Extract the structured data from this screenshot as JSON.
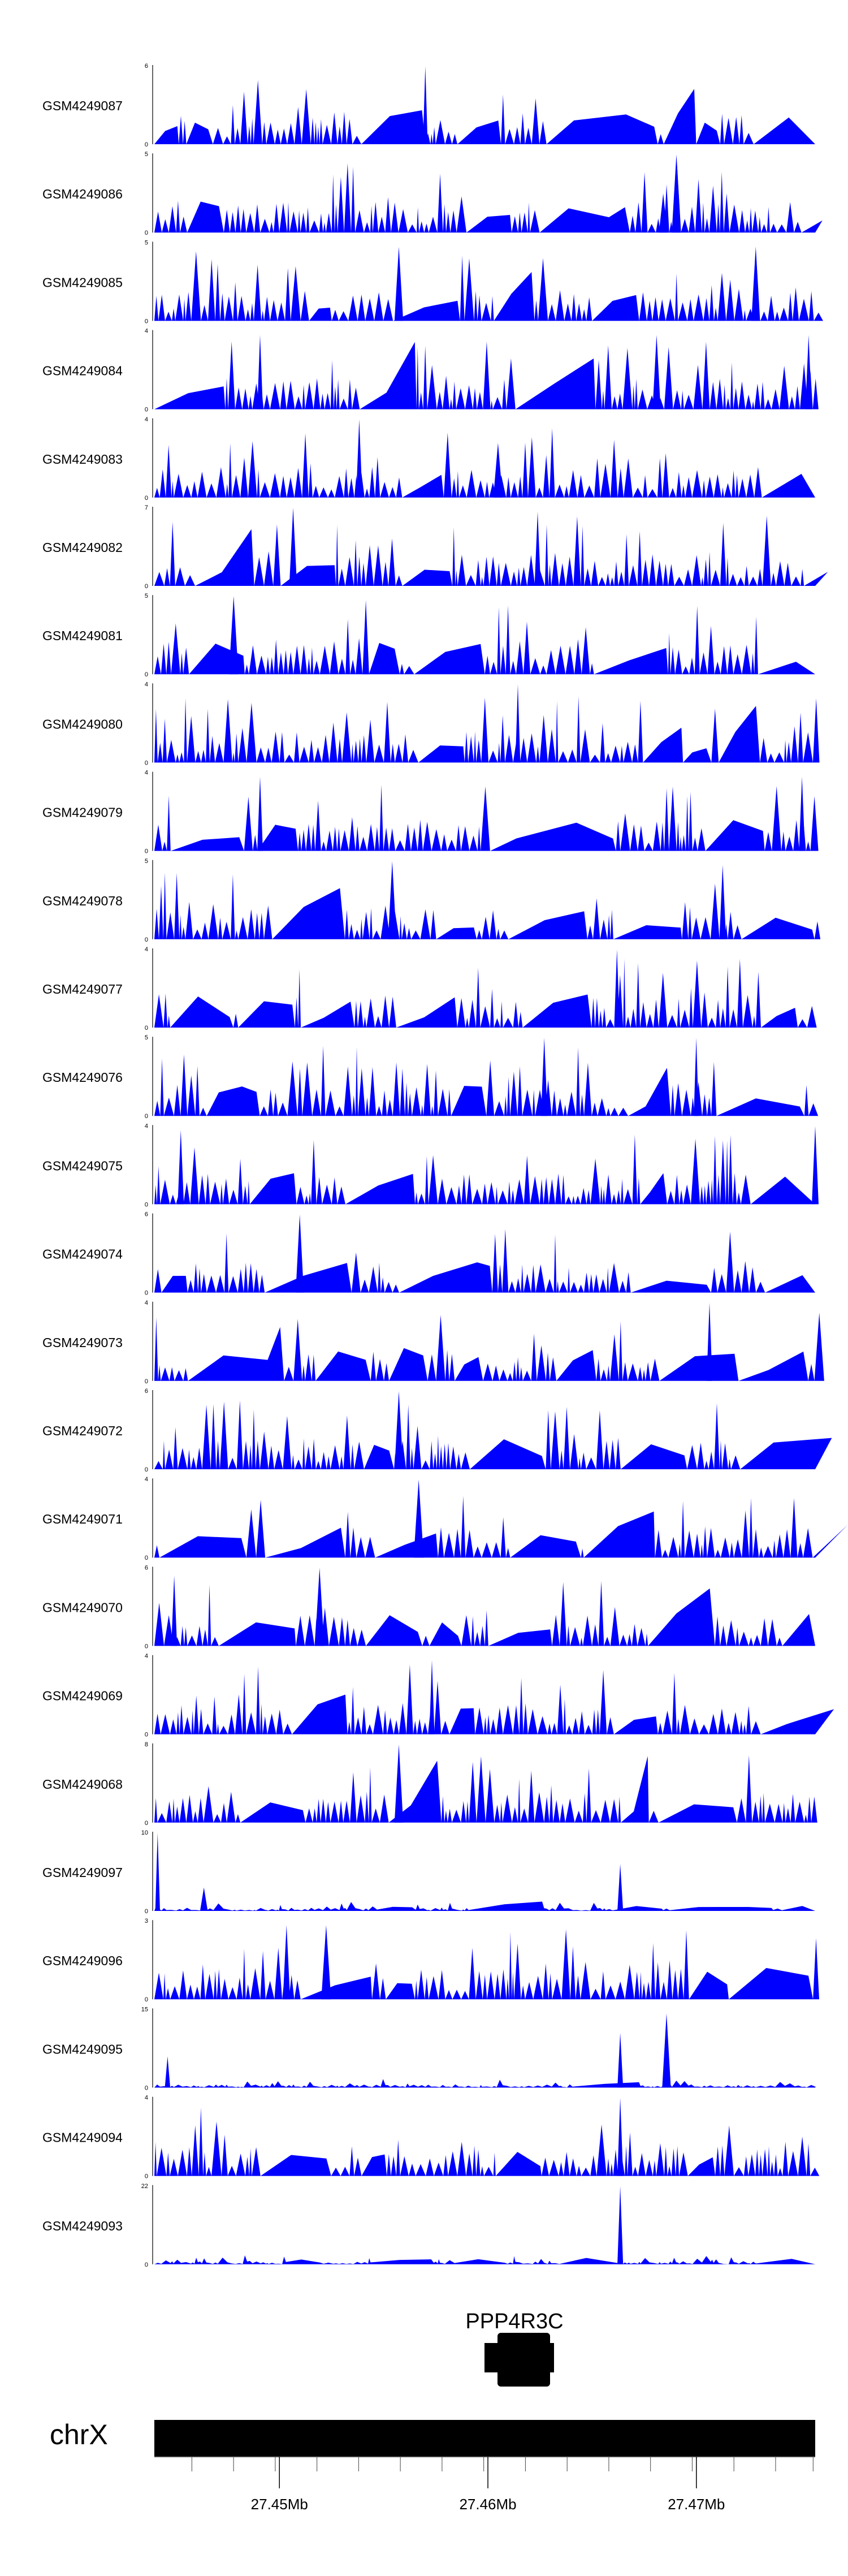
{
  "chart_data": {
    "type": "area",
    "fill_color": "#0000ff",
    "tracks": [
      {
        "name": "GSM4249087",
        "ymax": 6,
        "peaks": [
          {
            "x": 0.41,
            "v": 1.0
          }
        ],
        "seed": 87
      },
      {
        "name": "GSM4249086",
        "ymax": 5,
        "peaks": [
          {
            "x": 0.79,
            "v": 1.0
          },
          {
            "x": 0.77,
            "v": 0.5
          }
        ],
        "seed": 86
      },
      {
        "name": "GSM4249085",
        "ymax": 5,
        "peaks": [
          {
            "x": 0.37,
            "v": 0.95
          },
          {
            "x": 0.91,
            "v": 0.95
          }
        ],
        "seed": 85
      },
      {
        "name": "GSM4249084",
        "ymax": 4,
        "peaks": [
          {
            "x": 0.16,
            "v": 0.95
          },
          {
            "x": 0.76,
            "v": 0.95
          },
          {
            "x": 0.99,
            "v": 0.95
          }
        ],
        "seed": 84
      },
      {
        "name": "GSM4249083",
        "ymax": 4,
        "peaks": [
          {
            "x": 0.31,
            "v": 1.0
          },
          {
            "x": 0.52,
            "v": 0.7
          }
        ],
        "seed": 83
      },
      {
        "name": "GSM4249082",
        "ymax": 7,
        "peaks": [
          {
            "x": 0.21,
            "v": 1.0
          },
          {
            "x": 0.58,
            "v": 0.95
          }
        ],
        "seed": 82
      },
      {
        "name": "GSM4249081",
        "ymax": 5,
        "peaks": [
          {
            "x": 0.12,
            "v": 1.0
          },
          {
            "x": 0.32,
            "v": 0.95
          }
        ],
        "seed": 81
      },
      {
        "name": "GSM4249080",
        "ymax": 4,
        "peaks": [
          {
            "x": 0.55,
            "v": 1.0
          }
        ],
        "seed": 80
      },
      {
        "name": "GSM4249079",
        "ymax": 4,
        "peaks": [
          {
            "x": 0.16,
            "v": 0.95
          },
          {
            "x": 0.98,
            "v": 0.95
          }
        ],
        "seed": 79
      },
      {
        "name": "GSM4249078",
        "ymax": 5,
        "peaks": [
          {
            "x": 0.36,
            "v": 1.0
          },
          {
            "x": 0.86,
            "v": 0.95
          }
        ],
        "seed": 78
      },
      {
        "name": "GSM4249077",
        "ymax": 4,
        "peaks": [
          {
            "x": 0.7,
            "v": 1.0
          }
        ],
        "seed": 77
      },
      {
        "name": "GSM4249076",
        "ymax": 5,
        "peaks": [
          {
            "x": 0.59,
            "v": 1.0
          },
          {
            "x": 0.82,
            "v": 1.0
          }
        ],
        "seed": 76
      },
      {
        "name": "GSM4249075",
        "ymax": 4,
        "peaks": [
          {
            "x": 0.04,
            "v": 0.95
          },
          {
            "x": 1.0,
            "v": 1.0
          }
        ],
        "seed": 75
      },
      {
        "name": "GSM4249074",
        "ymax": 6,
        "peaks": [
          {
            "x": 0.22,
            "v": 1.0
          }
        ],
        "seed": 74
      },
      {
        "name": "GSM4249073",
        "ymax": 4,
        "peaks": [
          {
            "x": 0.84,
            "v": 1.0
          }
        ],
        "seed": 73
      },
      {
        "name": "GSM4249072",
        "ymax": 6,
        "peaks": [
          {
            "x": 0.37,
            "v": 1.0
          }
        ],
        "seed": 72
      },
      {
        "name": "GSM4249071",
        "ymax": 4,
        "peaks": [
          {
            "x": 0.4,
            "v": 1.0
          }
        ],
        "seed": 71
      },
      {
        "name": "GSM4249070",
        "ymax": 6,
        "peaks": [
          {
            "x": 0.25,
            "v": 1.0
          },
          {
            "x": 0.03,
            "v": 0.9
          }
        ],
        "seed": 70
      },
      {
        "name": "GSM4249069",
        "ymax": 4,
        "peaks": [
          {
            "x": 0.42,
            "v": 0.95
          }
        ],
        "seed": 69
      },
      {
        "name": "GSM4249068",
        "ymax": 8,
        "peaks": [
          {
            "x": 0.37,
            "v": 1.0
          }
        ],
        "seed": 68
      },
      {
        "name": "GSM4249097",
        "ymax": 10,
        "peaks": [
          {
            "x": 0.005,
            "v": 1.0
          },
          {
            "x": 0.705,
            "v": 0.6
          },
          {
            "x": 0.075,
            "v": 0.3
          }
        ],
        "seed": 97,
        "sparse": true
      },
      {
        "name": "GSM4249096",
        "ymax": 3,
        "peaks": [
          {
            "x": 0.2,
            "v": 0.95
          },
          {
            "x": 0.26,
            "v": 0.95
          }
        ],
        "seed": 96
      },
      {
        "name": "GSM4249095",
        "ymax": 15,
        "peaks": [
          {
            "x": 0.705,
            "v": 0.7
          },
          {
            "x": 0.775,
            "v": 0.95
          },
          {
            "x": 0.02,
            "v": 0.4
          }
        ],
        "seed": 95,
        "sparse": true
      },
      {
        "name": "GSM4249094",
        "ymax": 4,
        "peaks": [
          {
            "x": 0.705,
            "v": 1.0
          }
        ],
        "seed": 94
      },
      {
        "name": "GSM4249093",
        "ymax": 22,
        "peaks": [
          {
            "x": 0.705,
            "v": 1.0
          }
        ],
        "seed": 93,
        "sparse": true
      }
    ],
    "gene": {
      "label": "PPP4R3C"
    },
    "chromosome": {
      "label": "chrX"
    },
    "axis": {
      "start": 27.444,
      "end": 27.4757,
      "minor_ticks": [
        27.4458,
        27.4478,
        27.4498,
        27.4518,
        27.4538,
        27.4558,
        27.4578,
        27.4598,
        27.4618,
        27.4638,
        27.4658,
        27.4678,
        27.4698,
        27.4718,
        27.4738,
        27.4756
      ],
      "major_ticks": [
        {
          "value": 27.45,
          "label": "27.45Mb"
        },
        {
          "value": 27.46,
          "label": "27.46Mb"
        },
        {
          "value": 27.47,
          "label": "27.47Mb"
        }
      ]
    }
  }
}
